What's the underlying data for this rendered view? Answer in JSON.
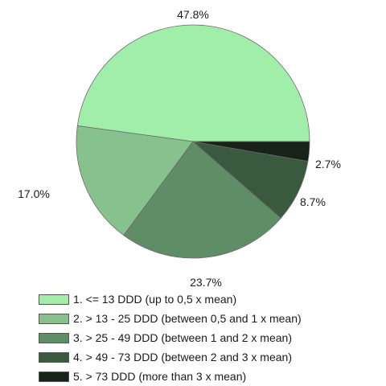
{
  "chart_data": {
    "type": "pie",
    "title": "",
    "categories": [
      "1. <= 13 DDD (up to 0,5 x mean)",
      "2. > 13 - 25 DDD (between 0,5 and 1 x mean)",
      "3. > 25 - 49 DDD (between 1 and 2 x mean)",
      "4. > 49 - 73 DDD (between 2 and 3 x mean)",
      "5. > 73 DDD (more than 3 x mean)"
    ],
    "values": [
      47.8,
      17.0,
      23.7,
      8.7,
      2.7
    ],
    "labels": [
      "47.8%",
      "17.0%",
      "23.7%",
      "8.7%",
      "2.7%"
    ],
    "colors": [
      "#a0eeaa",
      "#87c28e",
      "#5f8d65",
      "#3a5a3f",
      "#172218"
    ],
    "legend_position": "bottom-left"
  }
}
